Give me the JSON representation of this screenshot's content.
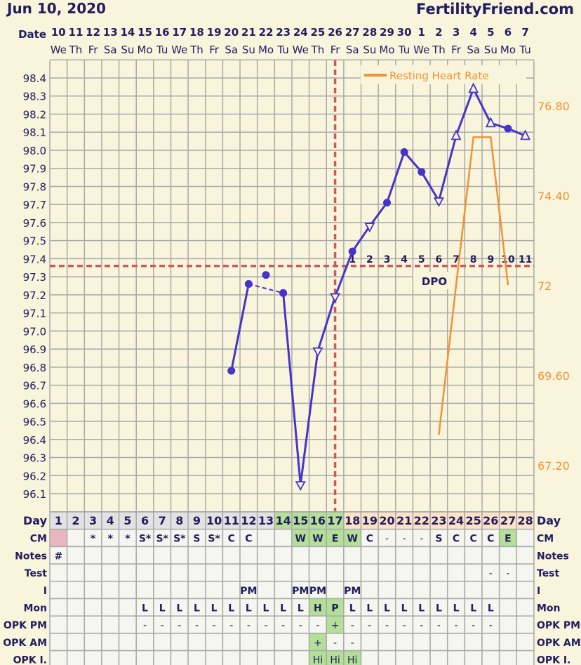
{
  "header": {
    "title": "Jun 10, 2020",
    "site": "FertilityFriend.com"
  },
  "date_label": "Date",
  "dates": [
    {
      "d": "10",
      "w": "We"
    },
    {
      "d": "11",
      "w": "Th"
    },
    {
      "d": "12",
      "w": "Fr"
    },
    {
      "d": "13",
      "w": "Sa"
    },
    {
      "d": "14",
      "w": "Su"
    },
    {
      "d": "15",
      "w": "Mo"
    },
    {
      "d": "16",
      "w": "Tu"
    },
    {
      "d": "17",
      "w": "We"
    },
    {
      "d": "18",
      "w": "Th"
    },
    {
      "d": "19",
      "w": "Fr"
    },
    {
      "d": "20",
      "w": "Sa"
    },
    {
      "d": "21",
      "w": "Su"
    },
    {
      "d": "22",
      "w": "Mo"
    },
    {
      "d": "23",
      "w": "Tu"
    },
    {
      "d": "24",
      "w": "We"
    },
    {
      "d": "25",
      "w": "Th"
    },
    {
      "d": "26",
      "w": "Fr"
    },
    {
      "d": "27",
      "w": "Sa"
    },
    {
      "d": "28",
      "w": "Su"
    },
    {
      "d": "29",
      "w": "Mo"
    },
    {
      "d": "30",
      "w": "Tu"
    },
    {
      "d": "1",
      "w": "We"
    },
    {
      "d": "2",
      "w": "Th"
    },
    {
      "d": "3",
      "w": "Fr"
    },
    {
      "d": "4",
      "w": "Sa"
    },
    {
      "d": "5",
      "w": "Su"
    },
    {
      "d": "6",
      "w": "Mo"
    },
    {
      "d": "7",
      "w": "Tu"
    }
  ],
  "colors": {
    "temp_line": "#4634c8",
    "heart_rate": "#f39234",
    "marker_line": "#cc5a5a",
    "text": "#221c5e",
    "background": "#f8f5dc",
    "grid": "#a9a9a9",
    "day_gray": "#e2e2e2",
    "day_green": "#b3df96",
    "day_peach": "#fce2c6",
    "menses": "#e8b6c2",
    "cell": "#f6f6f0"
  },
  "chart_data": {
    "type": "line",
    "days": [
      1,
      2,
      3,
      4,
      5,
      6,
      7,
      8,
      9,
      10,
      11,
      12,
      13,
      14,
      15,
      16,
      17,
      18,
      19,
      20,
      21,
      22,
      23,
      24,
      25,
      26,
      27,
      28
    ],
    "y_left": {
      "min": 96.0,
      "max": 98.5,
      "ticks": [
        "98.4",
        "98.3",
        "98.2",
        "98.1",
        "98.0",
        "97.9",
        "97.8",
        "97.7",
        "97.6",
        "97.5",
        "97.4",
        "97.3",
        "97.2",
        "97.1",
        "97.0",
        "96.9",
        "96.8",
        "96.7",
        "96.6",
        "96.5",
        "96.4",
        "96.3",
        "96.2",
        "96.1"
      ]
    },
    "y_right": {
      "ticks": [
        {
          "v": 76.8,
          "label": "76.80"
        },
        {
          "v": 74.4,
          "label": "74.40"
        },
        {
          "v": 72,
          "label": "72"
        },
        {
          "v": 69.6,
          "label": "69.60"
        },
        {
          "v": 67.2,
          "label": "67.20"
        }
      ]
    },
    "temperature": [
      {
        "day": 11,
        "v": 96.78,
        "m": "dot"
      },
      {
        "day": 12,
        "v": 97.26,
        "m": "dot"
      },
      {
        "day": 13,
        "v": 97.31,
        "m": "dot",
        "disconnected": true
      },
      {
        "day": 14,
        "v": 97.21,
        "m": "dot"
      },
      {
        "day": 15,
        "v": 96.15,
        "m": "tri-down"
      },
      {
        "day": 16,
        "v": 96.89,
        "m": "tri-down"
      },
      {
        "day": 17,
        "v": 97.19,
        "m": "tri-down"
      },
      {
        "day": 18,
        "v": 97.44,
        "m": "dot"
      },
      {
        "day": 19,
        "v": 97.58,
        "m": "tri-down"
      },
      {
        "day": 20,
        "v": 97.71,
        "m": "dot"
      },
      {
        "day": 21,
        "v": 97.99,
        "m": "dot"
      },
      {
        "day": 22,
        "v": 97.88,
        "m": "dot"
      },
      {
        "day": 23,
        "v": 97.72,
        "m": "tri-down"
      },
      {
        "day": 24,
        "v": 98.08,
        "m": "tri-up"
      },
      {
        "day": 25,
        "v": 98.34,
        "m": "tri-up"
      },
      {
        "day": 26,
        "v": 98.15,
        "m": "tri-up"
      },
      {
        "day": 27,
        "v": 98.12,
        "m": "dot"
      },
      {
        "day": 28,
        "v": 98.08,
        "m": "tri-up"
      }
    ],
    "heart_rate": {
      "name": "Resting Heart Rate",
      "points": [
        {
          "day": 23,
          "v": 68.0
        },
        {
          "day": 24,
          "v": 72.0
        },
        {
          "day": 25,
          "v": 75.95
        },
        {
          "day": 26,
          "v": 75.95
        },
        {
          "day": 27,
          "v": 72.0
        }
      ]
    },
    "coverline": 97.36,
    "ovulation_day": 17,
    "dpo": {
      "label": "DPO",
      "start_day": 18,
      "values": [
        "1",
        "2",
        "3",
        "4",
        "5",
        "6",
        "7",
        "8",
        "9",
        "10",
        "11"
      ]
    },
    "grid": true,
    "legend": "top-right"
  },
  "table": {
    "rows": [
      {
        "label": "Day",
        "cells": [
          "1",
          "2",
          "3",
          "4",
          "5",
          "6",
          "7",
          "8",
          "9",
          "10",
          "11",
          "12",
          "13",
          "14",
          "15",
          "16",
          "17",
          "18",
          "19",
          "20",
          "21",
          "22",
          "23",
          "24",
          "25",
          "26",
          "27",
          "28"
        ]
      },
      {
        "label": "CM",
        "cells": [
          "",
          "",
          "*",
          "*",
          "*",
          "S*",
          "S*",
          "S*",
          "S",
          "S*",
          "C",
          "C",
          "",
          "",
          "W",
          "W",
          "E",
          "W",
          "C",
          "-",
          "-",
          "-",
          "S",
          "C",
          "C",
          "C",
          "E",
          ""
        ],
        "green": [
          15,
          16,
          17,
          18,
          27
        ],
        "pink": [
          1
        ]
      },
      {
        "label": "Notes",
        "cells": [
          "#",
          "",
          "",
          "",
          "",
          "",
          "",
          "",
          "",
          "",
          "",
          "",
          "",
          "",
          "",
          "",
          "",
          "",
          "",
          "",
          "",
          "",
          "",
          "",
          "",
          "",
          "",
          ""
        ]
      },
      {
        "label": "Test",
        "cells": [
          "",
          "",
          "",
          "",
          "",
          "",
          "",
          "",
          "",
          "",
          "",
          "",
          "",
          "",
          "",
          "",
          "",
          "",
          "",
          "",
          "",
          "",
          "",
          "",
          "",
          "-",
          "-",
          ""
        ]
      },
      {
        "label": "I",
        "cells": [
          "",
          "",
          "",
          "",
          "",
          "",
          "",
          "",
          "",
          "",
          "",
          "PM",
          "",
          "",
          "PM",
          "PM",
          "",
          "PM",
          "",
          "",
          "",
          "",
          "",
          "",
          "",
          "",
          "",
          ""
        ]
      },
      {
        "label": "Mon",
        "cells": [
          "",
          "",
          "",
          "",
          "",
          "L",
          "L",
          "L",
          "L",
          "L",
          "L",
          "L",
          "L",
          "L",
          "L",
          "H",
          "P",
          "L",
          "L",
          "L",
          "L",
          "L",
          "L",
          "L",
          "L",
          "L",
          "",
          ""
        ],
        "green": [
          16,
          17
        ]
      },
      {
        "label": "OPK PM",
        "cells": [
          "",
          "",
          "",
          "",
          "",
          "-",
          "-",
          "-",
          "-",
          "-",
          "-",
          "-",
          "-",
          "-",
          "-",
          "-",
          "+",
          "-",
          "-",
          "-",
          "-",
          "-",
          "-",
          "-",
          "-",
          "-",
          "",
          ""
        ],
        "green": [
          17
        ]
      },
      {
        "label": "OPK AM",
        "cells": [
          "",
          "",
          "",
          "",
          "",
          "",
          "",
          "",
          "",
          "",
          "",
          "",
          "",
          "",
          "",
          "+",
          "-",
          "-",
          "",
          "",
          "",
          "",
          "",
          "",
          "",
          "",
          "",
          ""
        ],
        "green": [
          16
        ]
      },
      {
        "label": "OPK I.",
        "cells": [
          "",
          "",
          "",
          "",
          "",
          "",
          "",
          "",
          "",
          "",
          "",
          "",
          "",
          "",
          "",
          "Hi",
          "Hi",
          "Hi",
          "",
          "",
          "",
          "",
          "",
          "",
          "",
          "",
          "",
          ""
        ],
        "green": [
          16,
          17,
          18
        ]
      }
    ],
    "day_green": [
      14,
      15,
      16,
      17
    ],
    "day_peach_from": 18
  }
}
